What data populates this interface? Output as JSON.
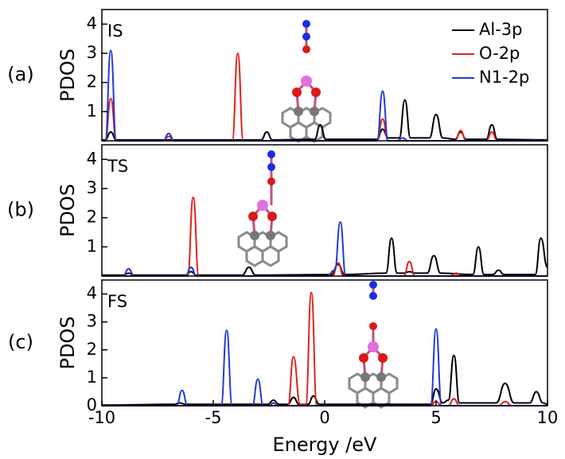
{
  "chart_data": [
    {
      "type": "line",
      "panel_label": "(a)",
      "state": "IS",
      "ylabel": "PDOS",
      "xlim": [
        -10,
        10
      ],
      "ylim": [
        0,
        4.5
      ],
      "yticks": [
        1,
        2,
        3,
        4
      ],
      "legend": "upper right",
      "series": [
        {
          "name": "Al-3p",
          "color": "#000000",
          "x": [
            -10,
            -9.85,
            -9.6,
            -9.35,
            -2.85,
            -2.6,
            -2.35,
            -0.45,
            -0.2,
            0.05,
            2.35,
            2.6,
            2.85,
            3.35,
            3.6,
            3.85,
            4.7,
            5.0,
            5.3,
            5.85,
            6.1,
            6.35,
            7.25,
            7.5,
            7.75,
            10
          ],
          "values": [
            0.03,
            0.03,
            0.3,
            0.03,
            0.03,
            0.3,
            0.03,
            0.05,
            0.55,
            0.05,
            0.05,
            0.4,
            0.1,
            0.1,
            1.4,
            0.1,
            0.1,
            0.9,
            0.1,
            0.05,
            0.3,
            0.05,
            0.05,
            0.55,
            0.05,
            0.03
          ]
        },
        {
          "name": "O-2p",
          "color": "#e0201b",
          "x": [
            -10,
            -9.85,
            -9.6,
            -9.35,
            -7.25,
            -7.0,
            -6.75,
            -4.15,
            -3.9,
            -3.65,
            2.35,
            2.6,
            2.85,
            5.85,
            6.1,
            6.35,
            7.25,
            7.5,
            7.75,
            10
          ],
          "values": [
            0,
            0,
            1.45,
            0,
            0,
            0.15,
            0,
            0,
            3.0,
            0,
            0,
            0.75,
            0,
            0,
            0.35,
            0,
            0,
            0.3,
            0,
            0
          ]
        },
        {
          "name": "N1-2p",
          "color": "#1f3bd6",
          "x": [
            -10,
            -9.85,
            -9.6,
            -9.35,
            -7.25,
            -7.0,
            -6.75,
            2.35,
            2.6,
            2.85,
            3.25,
            3.5,
            3.75,
            10
          ],
          "values": [
            0,
            0,
            3.1,
            0,
            0,
            0.25,
            0,
            0,
            1.7,
            0,
            0,
            0.1,
            0,
            0
          ]
        }
      ]
    },
    {
      "type": "line",
      "panel_label": "(b)",
      "state": "TS",
      "ylabel": "PDOS",
      "xlim": [
        -10,
        10
      ],
      "ylim": [
        0,
        4.5
      ],
      "yticks": [
        1,
        2,
        3,
        4
      ],
      "series": [
        {
          "color": "#000000",
          "x": [
            -10,
            -9.05,
            -8.8,
            -8.55,
            -6.25,
            -6.0,
            -5.75,
            -3.7,
            -3.4,
            -3.1,
            0.3,
            0.6,
            0.9,
            2.75,
            3.0,
            3.25,
            3.55,
            3.8,
            4.05,
            4.6,
            4.9,
            5.2,
            6.65,
            6.9,
            7.15,
            7.55,
            7.8,
            8.05,
            9.45,
            9.7,
            10
          ],
          "values": [
            0.03,
            0.03,
            0.1,
            0.03,
            0.03,
            0.15,
            0.03,
            0.03,
            0.3,
            0.03,
            0.05,
            0.4,
            0.05,
            0.1,
            1.3,
            0.1,
            0.1,
            0.15,
            0.1,
            0.1,
            0.7,
            0.1,
            0.05,
            1.0,
            0.05,
            0.05,
            0.2,
            0.05,
            0.05,
            1.3,
            0.3
          ]
        },
        {
          "color": "#e0201b",
          "x": [
            -10,
            -6.15,
            -5.9,
            -5.65,
            0.35,
            0.6,
            0.85,
            3.55,
            3.8,
            4.05,
            5.65,
            5.9,
            6.15,
            10
          ],
          "values": [
            0,
            0,
            2.7,
            0,
            0,
            0.45,
            0,
            0,
            0.5,
            0,
            0,
            0.1,
            0,
            0
          ]
        },
        {
          "color": "#1f3bd6",
          "x": [
            -10,
            -9.05,
            -8.8,
            -8.55,
            -6.25,
            -6.0,
            -5.75,
            0.1,
            0.45,
            0.7,
            0.95,
            10
          ],
          "values": [
            0,
            0,
            0.25,
            0,
            0,
            0.3,
            0,
            0,
            0.2,
            1.85,
            0,
            0
          ]
        }
      ]
    },
    {
      "type": "line",
      "panel_label": "(c)",
      "state": "FS",
      "ylabel": "PDOS",
      "xlabel": "Energy /eV",
      "xlim": [
        -10,
        10
      ],
      "ylim": [
        0,
        4.5
      ],
      "yticks": [
        0,
        1,
        2,
        3,
        4
      ],
      "xticks": [
        -10,
        -5,
        0,
        5,
        10
      ],
      "series": [
        {
          "color": "#000000",
          "x": [
            -10,
            -6.75,
            -6.5,
            -6.25,
            -2.55,
            -2.3,
            -2.05,
            -1.65,
            -1.4,
            -1.15,
            -0.75,
            -0.5,
            -0.25,
            4.75,
            5.0,
            5.3,
            5.55,
            5.8,
            6.05,
            7.7,
            8.1,
            8.5,
            9.2,
            9.5,
            9.8,
            10
          ],
          "values": [
            0.02,
            0.05,
            0.1,
            0.05,
            0.05,
            0.2,
            0.05,
            0.05,
            0.3,
            0.05,
            0.05,
            0.35,
            0.05,
            0.05,
            0.6,
            0.1,
            0.2,
            1.8,
            0.1,
            0.1,
            0.8,
            0.1,
            0.1,
            0.5,
            0.1,
            0.05
          ]
        },
        {
          "color": "#e0201b",
          "x": [
            -10,
            -1.65,
            -1.4,
            -1.1,
            -0.85,
            -0.6,
            -0.35,
            4.75,
            5.0,
            5.25,
            5.55,
            5.8,
            6.05,
            7.8,
            8.1,
            8.4,
            10
          ],
          "values": [
            0,
            0,
            1.75,
            0.05,
            0.05,
            4.05,
            0,
            0,
            0.15,
            0,
            0,
            0.25,
            0,
            0,
            0.15,
            0,
            0
          ]
        },
        {
          "color": "#1f3bd6",
          "x": [
            -10,
            -6.65,
            -6.4,
            -6.15,
            -4.65,
            -4.4,
            -4.15,
            -3.25,
            -3.0,
            -2.75,
            -2.5,
            -2.3,
            -2.1,
            4.75,
            5.0,
            5.25,
            10
          ],
          "values": [
            0,
            0,
            0.55,
            0,
            0,
            2.7,
            0,
            0,
            0.95,
            0,
            0,
            0.1,
            0,
            0,
            2.75,
            0,
            0
          ]
        }
      ]
    }
  ]
}
